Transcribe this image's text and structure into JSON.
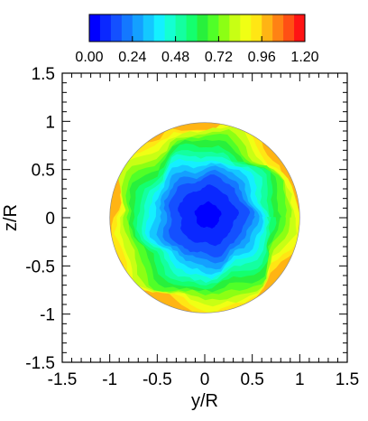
{
  "chart_data": {
    "type": "heatmap",
    "title": "",
    "xlabel": "y/R",
    "ylabel": "z/R",
    "xlim": [
      -1.5,
      1.5
    ],
    "ylim": [
      -1.5,
      1.5
    ],
    "x_ticks": [
      "-1.5",
      "-1",
      "-0.5",
      "0",
      "0.5",
      "1",
      "1.5"
    ],
    "y_ticks": [
      "1.5",
      "1",
      "0.5",
      "0",
      "-0.5",
      "-1",
      "-1.5"
    ],
    "x_tick_values": [
      -1.5,
      -1,
      -0.5,
      0,
      0.5,
      1,
      1.5
    ],
    "y_tick_values": [
      1.5,
      1,
      0.5,
      0,
      -0.5,
      -1,
      -1.5
    ],
    "domain": "circle of radius 1 centred at (0, 0)",
    "colorbar": {
      "position": "top",
      "range": [
        0.0,
        1.2
      ],
      "levels": 20,
      "tick_labels": [
        "0.00",
        "0.24",
        "0.48",
        "0.72",
        "0.96",
        "1.20"
      ],
      "tick_values": [
        0.0,
        0.24,
        0.48,
        0.72,
        0.96,
        1.2
      ],
      "colors": [
        "#0000ff",
        "#0a28ff",
        "#1450ff",
        "#1478ff",
        "#14a0ff",
        "#14c8ff",
        "#14f0ff",
        "#14ffd2",
        "#14ffa0",
        "#14ff6e",
        "#28f03c",
        "#50ff28",
        "#8cff14",
        "#c8ff14",
        "#f0ff14",
        "#ffe614",
        "#ffb414",
        "#ff8214",
        "#ff5014",
        "#ff1414"
      ]
    },
    "field": {
      "description": "radial profile: low values (~0.0-0.1) near the centre, increasing outward to ~0.9-1.0 at the wall",
      "r": [
        0.0,
        0.2,
        0.4,
        0.55,
        0.7,
        0.85,
        0.95,
        1.0
      ],
      "value": [
        0.05,
        0.08,
        0.18,
        0.35,
        0.55,
        0.75,
        0.9,
        1.0
      ]
    }
  }
}
